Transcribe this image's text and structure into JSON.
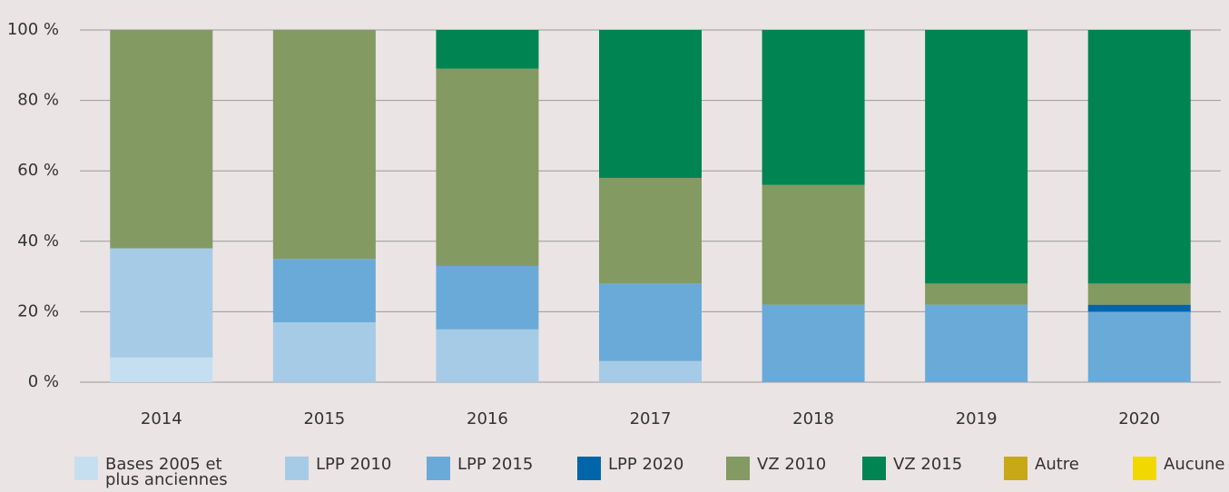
{
  "chart_data": {
    "type": "stacked_bar",
    "categories": [
      "2014",
      "2015",
      "2016",
      "2017",
      "2018",
      "2019",
      "2020"
    ],
    "series": [
      {
        "name": "Bases 2005 et plus anciennes",
        "color": "#c6dff0",
        "values": [
          7,
          0,
          0,
          0,
          0,
          0,
          0
        ]
      },
      {
        "name": "LPP 2010",
        "color": "#a6cbe6",
        "values": [
          31,
          17,
          15,
          6,
          0,
          0,
          0
        ]
      },
      {
        "name": "LPP 2015",
        "color": "#6aaad8",
        "values": [
          0,
          18,
          18,
          22,
          22,
          22,
          20
        ]
      },
      {
        "name": "LPP 2020",
        "color": "#0065a9",
        "values": [
          0,
          0,
          0,
          0,
          0,
          0,
          2
        ]
      },
      {
        "name": "VZ 2010",
        "color": "#839a62",
        "values": [
          62,
          65,
          56,
          30,
          34,
          6,
          6
        ]
      },
      {
        "name": "VZ 2015",
        "color": "#008452",
        "values": [
          0,
          0,
          11,
          42,
          44,
          72,
          72
        ]
      },
      {
        "name": "Autre",
        "color": "#c8a816",
        "values": [
          0,
          0,
          0,
          0,
          0,
          0,
          0
        ]
      },
      {
        "name": "Aucune",
        "color": "#f0d800",
        "values": [
          0,
          0,
          0,
          0,
          0,
          0,
          0
        ]
      }
    ],
    "ylim": [
      0,
      100
    ],
    "yticks": [
      {
        "value": 0,
        "label": "0 %"
      },
      {
        "value": 20,
        "label": "20 %"
      },
      {
        "value": 40,
        "label": "40 %"
      },
      {
        "value": 60,
        "label": "60 %"
      },
      {
        "value": 80,
        "label": "80 %"
      },
      {
        "value": 100,
        "label": "100 %"
      }
    ],
    "grid": true,
    "legend": "bottom"
  }
}
